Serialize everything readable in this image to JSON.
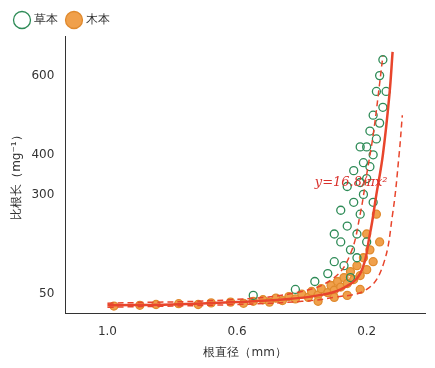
{
  "chart_data": {
    "type": "scatter",
    "x_label": "根直径（mm）",
    "y_label": "比根长（mg⁻¹）",
    "xlim": [
      1.13,
      0.02
    ],
    "ylim": [
      0,
      700
    ],
    "xticks": [
      {
        "value": 1,
        "label": "1.0"
      },
      0.6,
      0.2
    ],
    "yticks": [
      50,
      300,
      400,
      600
    ],
    "grid": false,
    "legend": "upper left",
    "series": [
      {
        "name": "草本",
        "color": "#2e8b57",
        "marker": "open_circle",
        "type": "scatter",
        "x": [
          0.55,
          0.42,
          0.36,
          0.32,
          0.3,
          0.28,
          0.27,
          0.26,
          0.25,
          0.24,
          0.23,
          0.22,
          0.22,
          0.21,
          0.21,
          0.2,
          0.2,
          0.19,
          0.19,
          0.18,
          0.18,
          0.17,
          0.17,
          0.16,
          0.16,
          0.15,
          0.15,
          0.14,
          0.25,
          0.23,
          0.2,
          0.18,
          0.26,
          0.28,
          0.3,
          0.22,
          0.24
        ],
        "values": [
          45,
          60,
          80,
          100,
          130,
          180,
          120,
          220,
          160,
          280,
          200,
          330,
          250,
          380,
          300,
          420,
          340,
          460,
          370,
          500,
          400,
          560,
          440,
          600,
          480,
          640,
          520,
          560,
          90,
          140,
          180,
          280,
          320,
          260,
          200,
          420,
          360
        ]
      },
      {
        "name": "木本",
        "color": "#f0a04b",
        "marker": "circle",
        "type": "scatter",
        "x": [
          0.98,
          0.9,
          0.85,
          0.78,
          0.72,
          0.68,
          0.62,
          0.58,
          0.55,
          0.52,
          0.5,
          0.48,
          0.46,
          0.44,
          0.42,
          0.4,
          0.38,
          0.37,
          0.35,
          0.34,
          0.32,
          0.31,
          0.3,
          0.29,
          0.28,
          0.27,
          0.26,
          0.25,
          0.24,
          0.23,
          0.22,
          0.21,
          0.2,
          0.19,
          0.18,
          0.22,
          0.26,
          0.3,
          0.35,
          0.2,
          0.17,
          0.16
        ],
        "values": [
          18,
          20,
          22,
          24,
          22,
          26,
          28,
          25,
          30,
          34,
          28,
          38,
          32,
          42,
          36,
          48,
          40,
          55,
          46,
          62,
          52,
          70,
          58,
          80,
          66,
          90,
          75,
          105,
          85,
          120,
          95,
          140,
          110,
          160,
          130,
          60,
          45,
          40,
          30,
          200,
          250,
          180
        ]
      },
      {
        "color": "#e8452c",
        "type": "line",
        "line_style": "solid",
        "x": [
          1.0,
          0.8,
          0.6,
          0.45,
          0.35,
          0.28,
          0.22,
          0.19,
          0.17,
          0.15,
          0.13,
          0.12
        ],
        "values": [
          20,
          22,
          28,
          35,
          45,
          60,
          100,
          200,
          300,
          400,
          550,
          660
        ]
      },
      {
        "color": "#e8452c",
        "type": "line",
        "line_style": "dashed",
        "x": [
          1.0,
          0.6,
          0.4,
          0.3,
          0.25,
          0.22,
          0.2,
          0.18,
          0.16,
          0.15
        ],
        "values": [
          25,
          35,
          55,
          90,
          150,
          250,
          350,
          450,
          580,
          650
        ]
      },
      {
        "color": "#e8452c",
        "type": "line",
        "line_style": "dashed",
        "x": [
          1.0,
          0.6,
          0.4,
          0.3,
          0.2,
          0.15,
          0.12,
          0.1,
          0.09
        ],
        "values": [
          15,
          22,
          30,
          40,
          60,
          120,
          250,
          400,
          500
        ]
      }
    ],
    "annotations": [
      {
        "text": "y=16.8/πx²",
        "x": 0.36,
        "y": 330,
        "color": "#d9302b"
      }
    ]
  }
}
